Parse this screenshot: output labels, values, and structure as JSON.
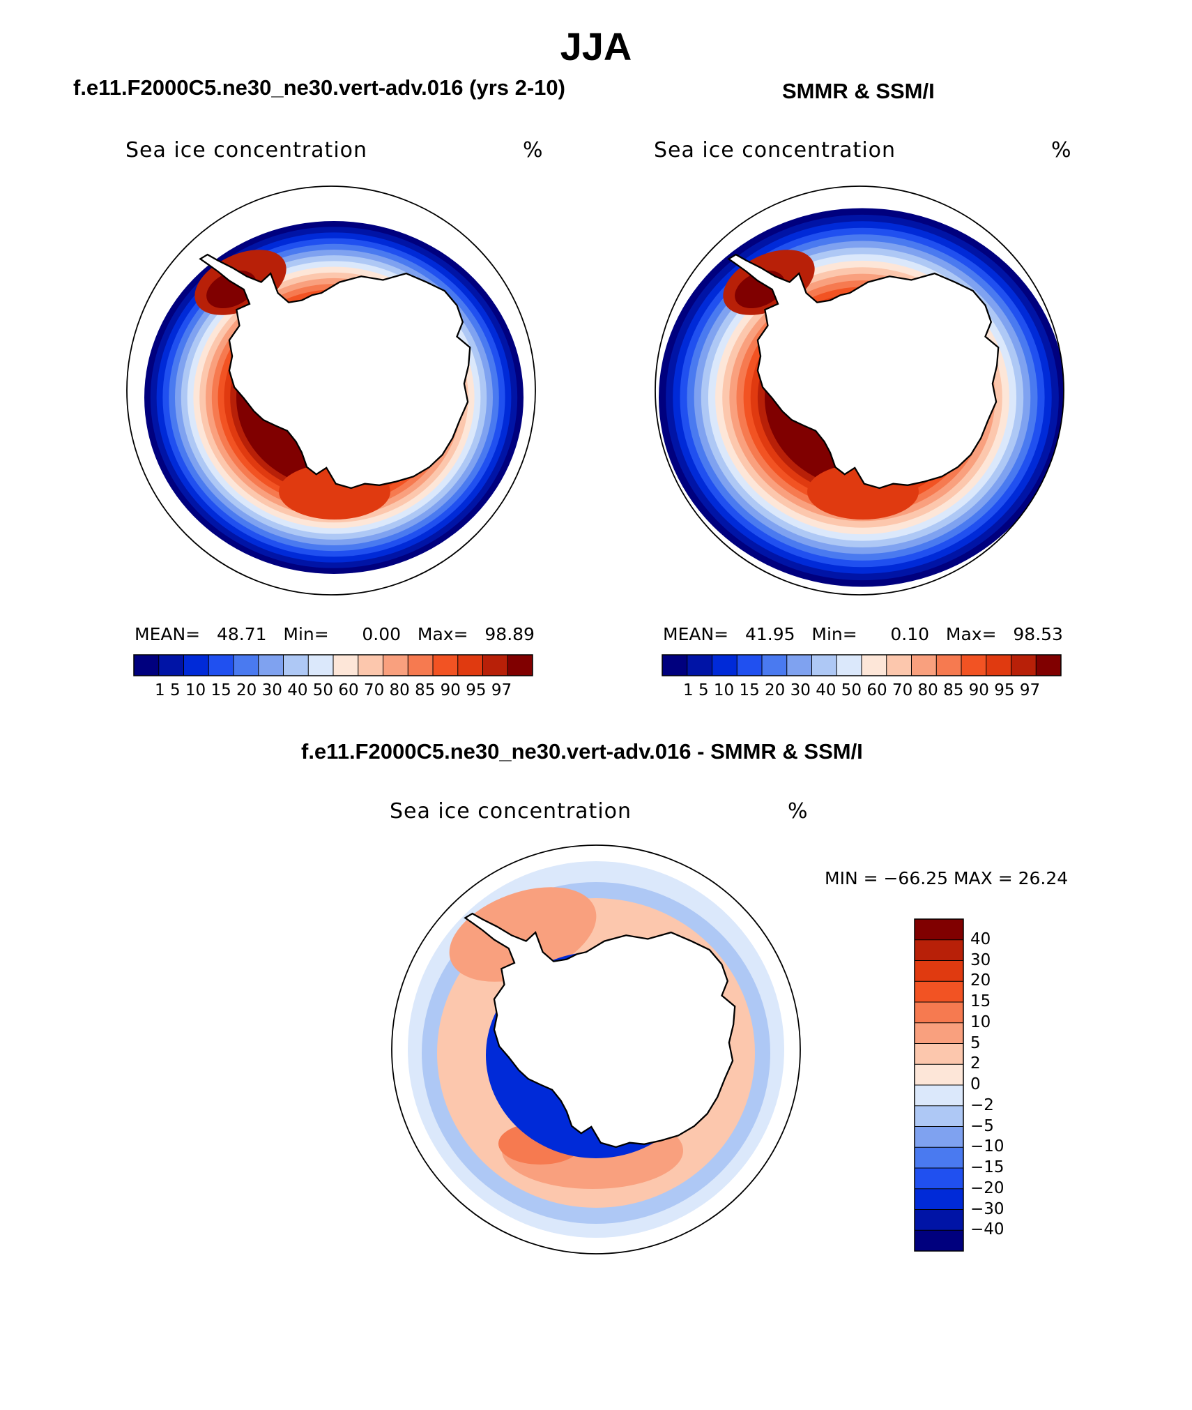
{
  "title": "JJA",
  "panels": [
    {
      "title": "f.e11.F2000C5.ne30_ne30.vert-adv.016 (yrs 2-10)",
      "field_label": "Sea ice concentration",
      "units": "%",
      "stats": {
        "mean_label": "MEAN=",
        "mean": "48.71",
        "min_label": "Min=",
        "min": "0.00",
        "max_label": "Max=",
        "max": "98.89"
      },
      "colorbar_labels": "1  5  10 15 20 30 40 50 60 70 80 85 90 95 97"
    },
    {
      "title": "SMMR & SSM/I",
      "field_label": "Sea ice concentration",
      "units": "%",
      "stats": {
        "mean_label": "MEAN=",
        "mean": "41.95",
        "min_label": "Min=",
        "min": "0.10",
        "max_label": "Max=",
        "max": "98.53"
      },
      "colorbar_labels": "1  5  10 15 20 30 40 50 60 70 80 85 90 95 97"
    }
  ],
  "difference": {
    "title": "f.e11.F2000C5.ne30_ne30.vert-adv.016 - SMMR & SSM/I",
    "field_label": "Sea ice concentration",
    "units": "%",
    "minmax": "MIN = −66.25 MAX =   26.24",
    "colorbar_levels": [
      "40",
      "30",
      "20",
      "15",
      "10",
      "5",
      "2",
      "0",
      "−2",
      "−5",
      "−10",
      "−15",
      "−20",
      "−30",
      "−40"
    ]
  },
  "colors": {
    "concentration_scale": [
      "#00007e",
      "#0014a6",
      "#002ad8",
      "#2050f0",
      "#4a7af0",
      "#7fa2f0",
      "#aec8f5",
      "#dbe8fb",
      "#fde6d8",
      "#fcc7ad",
      "#f9a07e",
      "#f67a50",
      "#f25323",
      "#e03a10",
      "#b82008",
      "#800000"
    ],
    "difference_scale": [
      "#800000",
      "#b82008",
      "#e03a10",
      "#f25323",
      "#f67a50",
      "#f9a07e",
      "#fcc7ad",
      "#fde6d8",
      "#dbe8fb",
      "#aec8f5",
      "#7fa2f0",
      "#4a7af0",
      "#2050f0",
      "#002ad8",
      "#0014a6",
      "#00007e"
    ]
  }
}
